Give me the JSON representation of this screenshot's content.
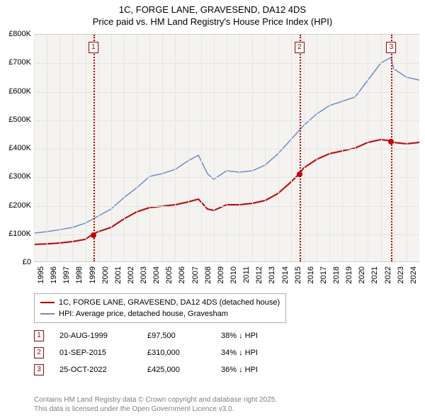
{
  "title": {
    "line1": "1C, FORGE LANE, GRAVESEND, DA12 4DS",
    "line2": "Price paid vs. HM Land Registry's House Price Index (HPI)"
  },
  "chart": {
    "type": "line",
    "background_color": "#f5f3f0",
    "grid_color": "#e5e5e5",
    "x": {
      "min": 1995,
      "max": 2025,
      "labels": [
        "1995",
        "1996",
        "1997",
        "1998",
        "1999",
        "2000",
        "2001",
        "2002",
        "2003",
        "2004",
        "2005",
        "2006",
        "2007",
        "2008",
        "2009",
        "2010",
        "2011",
        "2012",
        "2013",
        "2014",
        "2015",
        "2016",
        "2017",
        "2018",
        "2019",
        "2020",
        "2021",
        "2022",
        "2023",
        "2024"
      ]
    },
    "y": {
      "min": 0,
      "max": 800000,
      "step": 100000,
      "labels": [
        "£0",
        "£100K",
        "£200K",
        "£300K",
        "£400K",
        "£500K",
        "£600K",
        "£700K",
        "£800K"
      ]
    },
    "series": [
      {
        "name": "1C, FORGE LANE, GRAVESEND, DA12 4DS (detached house)",
        "color": "#cc0000",
        "width": 2,
        "points": [
          [
            1995,
            60000
          ],
          [
            1996,
            62000
          ],
          [
            1997,
            65000
          ],
          [
            1998,
            70000
          ],
          [
            1999,
            78000
          ],
          [
            1999.63,
            97500
          ],
          [
            2000,
            105000
          ],
          [
            2001,
            120000
          ],
          [
            2002,
            150000
          ],
          [
            2003,
            175000
          ],
          [
            2004,
            190000
          ],
          [
            2005,
            195000
          ],
          [
            2006,
            200000
          ],
          [
            2007,
            210000
          ],
          [
            2007.8,
            220000
          ],
          [
            2008.5,
            185000
          ],
          [
            2009,
            180000
          ],
          [
            2010,
            200000
          ],
          [
            2011,
            200000
          ],
          [
            2012,
            205000
          ],
          [
            2013,
            215000
          ],
          [
            2014,
            240000
          ],
          [
            2015,
            280000
          ],
          [
            2015.67,
            310000
          ],
          [
            2016,
            330000
          ],
          [
            2017,
            360000
          ],
          [
            2018,
            380000
          ],
          [
            2019,
            390000
          ],
          [
            2020,
            400000
          ],
          [
            2021,
            420000
          ],
          [
            2022,
            430000
          ],
          [
            2022.82,
            425000
          ],
          [
            2023,
            420000
          ],
          [
            2024,
            415000
          ],
          [
            2025,
            420000
          ]
        ],
        "markers": [
          [
            1999.63,
            97500
          ],
          [
            2015.67,
            310000
          ],
          [
            2022.82,
            425000
          ]
        ]
      },
      {
        "name": "HPI: Average price, detached house, Gravesham",
        "color": "#6a8fc7",
        "width": 1.5,
        "points": [
          [
            1995,
            100000
          ],
          [
            1996,
            105000
          ],
          [
            1997,
            112000
          ],
          [
            1998,
            120000
          ],
          [
            1999,
            135000
          ],
          [
            2000,
            160000
          ],
          [
            2001,
            185000
          ],
          [
            2002,
            225000
          ],
          [
            2003,
            260000
          ],
          [
            2004,
            300000
          ],
          [
            2005,
            310000
          ],
          [
            2006,
            325000
          ],
          [
            2007,
            355000
          ],
          [
            2007.8,
            375000
          ],
          [
            2008.5,
            310000
          ],
          [
            2009,
            290000
          ],
          [
            2010,
            320000
          ],
          [
            2011,
            315000
          ],
          [
            2012,
            320000
          ],
          [
            2013,
            340000
          ],
          [
            2014,
            380000
          ],
          [
            2015,
            430000
          ],
          [
            2016,
            480000
          ],
          [
            2017,
            520000
          ],
          [
            2018,
            550000
          ],
          [
            2019,
            565000
          ],
          [
            2020,
            580000
          ],
          [
            2021,
            640000
          ],
          [
            2022,
            700000
          ],
          [
            2022.8,
            720000
          ],
          [
            2023,
            680000
          ],
          [
            2024,
            650000
          ],
          [
            2025,
            640000
          ]
        ]
      }
    ],
    "events": [
      {
        "n": "1",
        "x": 1999.63,
        "color": "#cc0000"
      },
      {
        "n": "2",
        "x": 2015.67,
        "color": "#cc0000"
      },
      {
        "n": "3",
        "x": 2022.82,
        "color": "#cc0000"
      }
    ]
  },
  "legend": [
    {
      "color": "#cc0000",
      "label": "1C, FORGE LANE, GRAVESEND, DA12 4DS (detached house)"
    },
    {
      "color": "#6a8fc7",
      "label": "HPI: Average price, detached house, Gravesham"
    }
  ],
  "transactions": [
    {
      "n": "1",
      "date": "20-AUG-1999",
      "price": "£97,500",
      "delta": "38% ↓ HPI"
    },
    {
      "n": "2",
      "date": "01-SEP-2015",
      "price": "£310,000",
      "delta": "34% ↓ HPI"
    },
    {
      "n": "3",
      "date": "25-OCT-2022",
      "price": "£425,000",
      "delta": "36% ↓ HPI"
    }
  ],
  "footer": {
    "line1": "Contains HM Land Registry data © Crown copyright and database right 2025.",
    "line2": "This data is licensed under the Open Government Licence v3.0."
  }
}
